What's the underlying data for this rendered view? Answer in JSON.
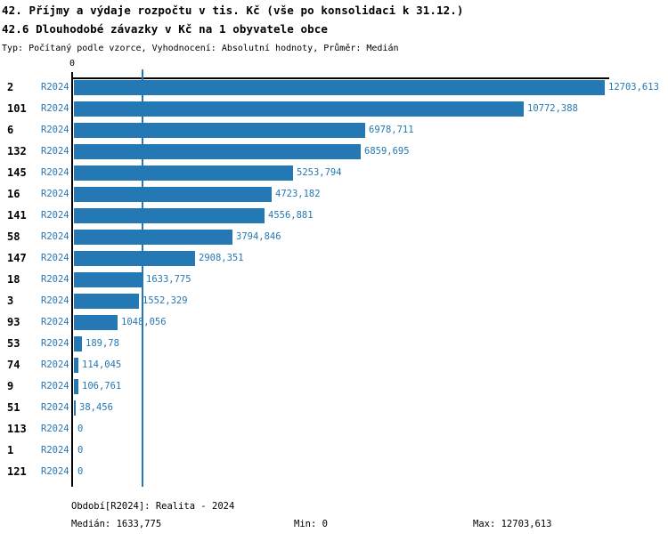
{
  "header": {
    "title_line1": "42. Příjmy a výdaje rozpočtu v tis. Kč (vše po konsolidaci k 31.12.)",
    "title_line2": "42.6 Dlouhodobé závazky v Kč na 1 obyvatele obce",
    "meta_line": "Typ: Počítaný podle vzorce, Vyhodnocení: Absolutní hodnoty, Průměr: Medián"
  },
  "colors": {
    "accent": "#2478b4",
    "axis": "#000000",
    "background": "#ffffff"
  },
  "chart_data": {
    "type": "bar",
    "orientation": "horizontal",
    "title": "42.6 Dlouhodobé závazky v Kč na 1 obyvatele obce",
    "xlabel": "",
    "ylabel": "",
    "xlim": [
      0,
      12703.613
    ],
    "x_origin_tick_label": "0",
    "grid": false,
    "legend_position": "none",
    "median_value": 1633.775,
    "period": "R2024",
    "categories": [
      "2",
      "101",
      "6",
      "132",
      "145",
      "16",
      "141",
      "58",
      "147",
      "18",
      "3",
      "93",
      "53",
      "74",
      "9",
      "51",
      "113",
      "1",
      "121"
    ],
    "rows": [
      {
        "category": "2",
        "period": "R2024",
        "value": 12703.613,
        "label": "12703,613"
      },
      {
        "category": "101",
        "period": "R2024",
        "value": 10772.388,
        "label": "10772,388"
      },
      {
        "category": "6",
        "period": "R2024",
        "value": 6978.711,
        "label": "6978,711"
      },
      {
        "category": "132",
        "period": "R2024",
        "value": 6859.695,
        "label": "6859,695"
      },
      {
        "category": "145",
        "period": "R2024",
        "value": 5253.794,
        "label": "5253,794"
      },
      {
        "category": "16",
        "period": "R2024",
        "value": 4723.182,
        "label": "4723,182"
      },
      {
        "category": "141",
        "period": "R2024",
        "value": 4556.881,
        "label": "4556,881"
      },
      {
        "category": "58",
        "period": "R2024",
        "value": 3794.846,
        "label": "3794,846"
      },
      {
        "category": "147",
        "period": "R2024",
        "value": 2908.351,
        "label": "2908,351"
      },
      {
        "category": "18",
        "period": "R2024",
        "value": 1633.775,
        "label": "1633,775"
      },
      {
        "category": "3",
        "period": "R2024",
        "value": 1552.329,
        "label": "1552,329"
      },
      {
        "category": "93",
        "period": "R2024",
        "value": 1048.056,
        "label": "1048,056"
      },
      {
        "category": "53",
        "period": "R2024",
        "value": 189.78,
        "label": "189,78"
      },
      {
        "category": "74",
        "period": "R2024",
        "value": 114.045,
        "label": "114,045"
      },
      {
        "category": "9",
        "period": "R2024",
        "value": 106.761,
        "label": "106,761"
      },
      {
        "category": "51",
        "period": "R2024",
        "value": 38.456,
        "label": "38,456"
      },
      {
        "category": "113",
        "period": "R2024",
        "value": 0,
        "label": "0"
      },
      {
        "category": "1",
        "period": "R2024",
        "value": 0,
        "label": "0"
      },
      {
        "category": "121",
        "period": "R2024",
        "value": 0,
        "label": "0"
      }
    ]
  },
  "footer": {
    "period_line": "Období[R2024]: Realita - 2024",
    "median_label": "Medián: 1633,775",
    "min_label": "Min: 0",
    "max_label": "Max: 12703,613"
  }
}
